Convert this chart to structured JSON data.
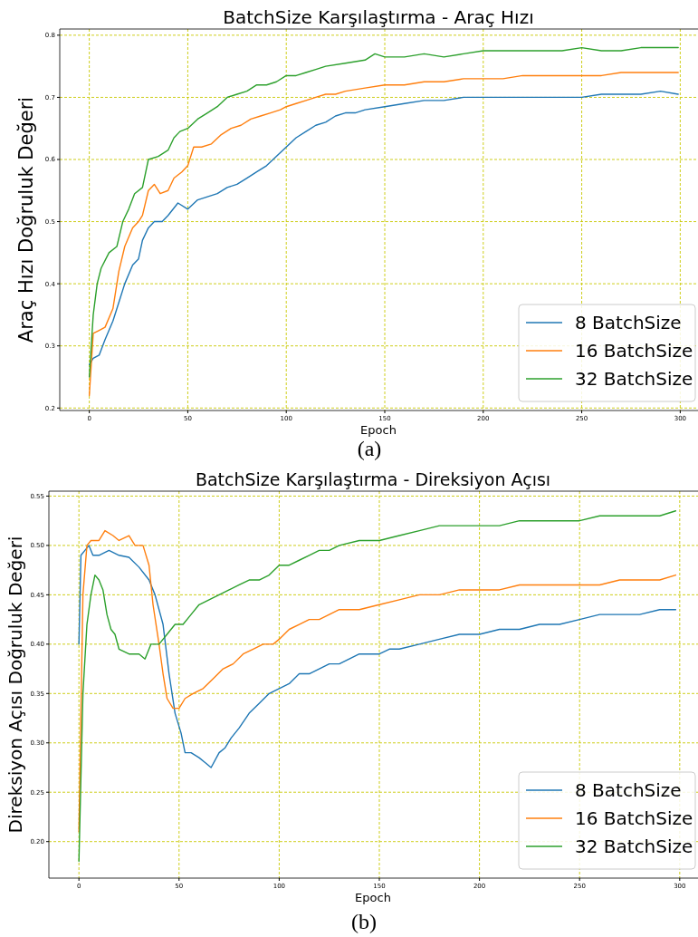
{
  "chart_data": [
    {
      "type": "line",
      "title": "BatchSize Karşılaştırma - Araç Hızı",
      "xlabel": "Epoch",
      "ylabel": "Araç Hızı Doğruluk Değeri",
      "annotations": [
        "(a)"
      ],
      "xlim": [
        -15,
        315
      ],
      "ylim": [
        0.196,
        0.81
      ],
      "xticks": [
        0,
        50,
        100,
        150,
        200,
        250,
        300
      ],
      "yticks": [
        0.2,
        0.3,
        0.4,
        0.5,
        0.6,
        0.7,
        0.8
      ],
      "grid": true,
      "legend": "bottom right",
      "line_style": "solid",
      "series": [
        {
          "name": "8 BatchSize",
          "color": "#1f77b4",
          "x": [
            0,
            2,
            5,
            8,
            12,
            15,
            18,
            22,
            25,
            27,
            30,
            33,
            37,
            40,
            45,
            50,
            55,
            60,
            65,
            70,
            75,
            80,
            85,
            90,
            95,
            100,
            105,
            110,
            115,
            120,
            125,
            130,
            135,
            140,
            150,
            160,
            170,
            180,
            190,
            200,
            210,
            220,
            230,
            240,
            250,
            260,
            270,
            280,
            290,
            299
          ],
          "values": [
            0.27,
            0.28,
            0.285,
            0.31,
            0.34,
            0.37,
            0.4,
            0.43,
            0.44,
            0.47,
            0.49,
            0.5,
            0.5,
            0.51,
            0.53,
            0.52,
            0.535,
            0.54,
            0.545,
            0.555,
            0.56,
            0.57,
            0.58,
            0.59,
            0.605,
            0.62,
            0.635,
            0.645,
            0.655,
            0.66,
            0.67,
            0.675,
            0.675,
            0.68,
            0.685,
            0.69,
            0.695,
            0.695,
            0.7,
            0.7,
            0.7,
            0.7,
            0.7,
            0.7,
            0.7,
            0.705,
            0.705,
            0.705,
            0.71,
            0.705
          ]
        },
        {
          "name": "16 BatchSize",
          "color": "#ff7f0e",
          "x": [
            0,
            2,
            5,
            8,
            12,
            15,
            18,
            22,
            25,
            27,
            30,
            33,
            36,
            40,
            43,
            47,
            50,
            53,
            57,
            62,
            67,
            72,
            77,
            82,
            87,
            92,
            97,
            100,
            105,
            110,
            115,
            120,
            125,
            130,
            140,
            150,
            160,
            170,
            180,
            190,
            200,
            210,
            220,
            230,
            240,
            250,
            260,
            270,
            280,
            290,
            299
          ],
          "values": [
            0.22,
            0.32,
            0.325,
            0.33,
            0.36,
            0.42,
            0.46,
            0.49,
            0.5,
            0.51,
            0.55,
            0.56,
            0.545,
            0.55,
            0.57,
            0.58,
            0.59,
            0.62,
            0.62,
            0.625,
            0.64,
            0.65,
            0.655,
            0.665,
            0.67,
            0.675,
            0.68,
            0.685,
            0.69,
            0.695,
            0.7,
            0.705,
            0.705,
            0.71,
            0.715,
            0.72,
            0.72,
            0.725,
            0.725,
            0.73,
            0.73,
            0.73,
            0.735,
            0.735,
            0.735,
            0.735,
            0.735,
            0.74,
            0.74,
            0.74,
            0.74
          ]
        },
        {
          "name": "32 BatchSize",
          "color": "#2ca02c",
          "x": [
            0,
            2,
            4,
            6,
            10,
            14,
            17,
            20,
            23,
            27,
            30,
            35,
            40,
            43,
            46,
            50,
            55,
            60,
            65,
            70,
            75,
            80,
            85,
            90,
            95,
            100,
            105,
            110,
            115,
            120,
            130,
            140,
            145,
            150,
            160,
            170,
            180,
            190,
            200,
            210,
            220,
            230,
            240,
            250,
            260,
            270,
            280,
            290,
            299
          ],
          "values": [
            0.25,
            0.35,
            0.4,
            0.425,
            0.45,
            0.46,
            0.5,
            0.52,
            0.545,
            0.555,
            0.6,
            0.605,
            0.615,
            0.635,
            0.645,
            0.65,
            0.665,
            0.675,
            0.685,
            0.7,
            0.705,
            0.71,
            0.72,
            0.72,
            0.725,
            0.735,
            0.735,
            0.74,
            0.745,
            0.75,
            0.755,
            0.76,
            0.77,
            0.765,
            0.765,
            0.77,
            0.765,
            0.77,
            0.775,
            0.775,
            0.775,
            0.775,
            0.775,
            0.78,
            0.775,
            0.775,
            0.78,
            0.78,
            0.78
          ]
        }
      ]
    },
    {
      "type": "line",
      "title": "BatchSize Karşılaştırma - Direksiyon Açısı",
      "xlabel": "Epoch",
      "ylabel": "Direksiyon Açısı Doğruluk Değeri",
      "annotations": [
        "(b)"
      ],
      "xlim": [
        -15,
        315
      ],
      "ylim": [
        0.163,
        0.555
      ],
      "xticks": [
        0,
        50,
        100,
        150,
        200,
        250,
        300
      ],
      "yticks": [
        {
          "value": 0.2,
          "label": "0.20"
        },
        {
          "value": 0.25,
          "label": "0.25"
        },
        {
          "value": 0.3,
          "label": "0.30"
        },
        {
          "value": 0.35,
          "label": "0.35"
        },
        {
          "value": 0.4,
          "label": "0.40"
        },
        {
          "value": 0.45,
          "label": "0.45"
        },
        {
          "value": 0.5,
          "label": "0.50"
        },
        {
          "value": 0.55,
          "label": "0.55"
        }
      ],
      "grid": true,
      "legend": "bottom right",
      "line_style": "solid",
      "series": [
        {
          "name": "8 BatchSize",
          "color": "#1f77b4",
          "x": [
            0,
            1,
            3,
            5,
            7,
            10,
            15,
            20,
            25,
            30,
            35,
            38,
            42,
            45,
            48,
            51,
            53,
            56,
            60,
            63,
            66,
            70,
            73,
            76,
            80,
            85,
            90,
            95,
            100,
            105,
            110,
            115,
            120,
            125,
            130,
            135,
            140,
            145,
            150,
            155,
            160,
            170,
            180,
            190,
            200,
            210,
            220,
            230,
            240,
            250,
            260,
            270,
            280,
            290,
            298
          ],
          "values": [
            0.4,
            0.49,
            0.495,
            0.5,
            0.49,
            0.49,
            0.495,
            0.49,
            0.488,
            0.478,
            0.465,
            0.45,
            0.42,
            0.37,
            0.33,
            0.31,
            0.29,
            0.29,
            0.285,
            0.28,
            0.275,
            0.29,
            0.295,
            0.305,
            0.315,
            0.33,
            0.34,
            0.35,
            0.355,
            0.36,
            0.37,
            0.37,
            0.375,
            0.38,
            0.38,
            0.385,
            0.39,
            0.39,
            0.39,
            0.395,
            0.395,
            0.4,
            0.405,
            0.41,
            0.41,
            0.415,
            0.415,
            0.42,
            0.42,
            0.425,
            0.43,
            0.43,
            0.43,
            0.435,
            0.435
          ]
        },
        {
          "name": "16 BatchSize",
          "color": "#ff7f0e",
          "x": [
            0,
            2,
            4,
            6,
            10,
            13,
            17,
            20,
            25,
            28,
            32,
            35,
            37,
            40,
            42,
            44,
            47,
            50,
            53,
            57,
            62,
            67,
            72,
            77,
            82,
            87,
            92,
            97,
            100,
            105,
            110,
            115,
            120,
            125,
            130,
            140,
            150,
            160,
            170,
            180,
            190,
            200,
            210,
            220,
            230,
            240,
            250,
            260,
            270,
            280,
            290,
            298
          ],
          "values": [
            0.21,
            0.45,
            0.5,
            0.505,
            0.505,
            0.515,
            0.51,
            0.505,
            0.51,
            0.5,
            0.5,
            0.48,
            0.44,
            0.4,
            0.37,
            0.345,
            0.335,
            0.335,
            0.345,
            0.35,
            0.355,
            0.365,
            0.375,
            0.38,
            0.39,
            0.395,
            0.4,
            0.4,
            0.405,
            0.415,
            0.42,
            0.425,
            0.425,
            0.43,
            0.435,
            0.435,
            0.44,
            0.445,
            0.45,
            0.45,
            0.455,
            0.455,
            0.455,
            0.46,
            0.46,
            0.46,
            0.46,
            0.46,
            0.465,
            0.465,
            0.465,
            0.47
          ]
        },
        {
          "name": "32 BatchSize",
          "color": "#2ca02c",
          "x": [
            0,
            2,
            4,
            6,
            8,
            10,
            12,
            14,
            16,
            18,
            20,
            25,
            30,
            33,
            36,
            40,
            44,
            48,
            52,
            56,
            60,
            65,
            70,
            75,
            80,
            85,
            90,
            95,
            100,
            105,
            110,
            115,
            120,
            125,
            130,
            140,
            150,
            160,
            170,
            180,
            190,
            200,
            210,
            220,
            230,
            240,
            250,
            260,
            270,
            280,
            290,
            298
          ],
          "values": [
            0.18,
            0.35,
            0.42,
            0.45,
            0.47,
            0.465,
            0.455,
            0.43,
            0.415,
            0.41,
            0.395,
            0.39,
            0.39,
            0.385,
            0.4,
            0.4,
            0.41,
            0.42,
            0.42,
            0.43,
            0.44,
            0.445,
            0.45,
            0.455,
            0.46,
            0.465,
            0.465,
            0.47,
            0.48,
            0.48,
            0.485,
            0.49,
            0.495,
            0.495,
            0.5,
            0.505,
            0.505,
            0.51,
            0.515,
            0.52,
            0.52,
            0.52,
            0.52,
            0.525,
            0.525,
            0.525,
            0.525,
            0.53,
            0.53,
            0.53,
            0.53,
            0.535
          ]
        }
      ]
    }
  ]
}
